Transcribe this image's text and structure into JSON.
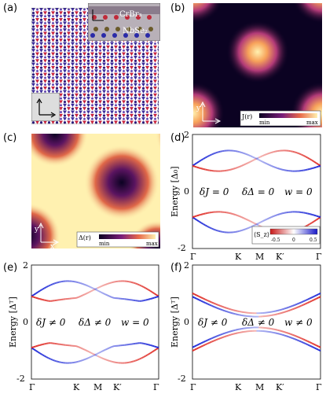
{
  "panels": {
    "a": {
      "label": "(a)",
      "inset_top": "CrBr₃",
      "inset_bottom": "NbSe₂"
    },
    "b": {
      "label": "(b)",
      "colorbar": {
        "title": "J(r)",
        "min": "min",
        "max": "max"
      },
      "axis_y": "y",
      "axis_x": "x"
    },
    "c": {
      "label": "(c)",
      "colorbar": {
        "title": "Δ(r)",
        "min": "min",
        "max": "max"
      },
      "axis_y": "y",
      "axis_x": "x"
    },
    "d": {
      "label": "(d)",
      "ylabel": "Energy [Δ₀]",
      "annotations": [
        "δJ = 0",
        "δΔ = 0",
        "w = 0"
      ],
      "colorbar": {
        "title": "⟨S_z⟩",
        "ticks": [
          "-0.5",
          "0",
          "0.5"
        ]
      }
    },
    "e": {
      "label": "(e)",
      "ylabel": "Energy [Δᵀ]",
      "annotations": [
        "δJ ≠ 0",
        "δΔ ≠ 0",
        "w = 0"
      ]
    },
    "f": {
      "label": "(f)",
      "ylabel": "Energy [Δᵀ]",
      "annotations": [
        "δJ ≠ 0",
        "δΔ ≠ 0",
        "w ≠ 0"
      ]
    }
  },
  "band_axes": {
    "x_ticks": [
      "Γ",
      "K",
      "M",
      "K′",
      "Γ"
    ],
    "y_ticks": [
      "2",
      "0",
      "-2"
    ],
    "ylim": [
      -2,
      2
    ]
  },
  "colors": {
    "red": "#e0302a",
    "blue": "#1f2bd8",
    "dark": "#0b0222",
    "bright": "#fff1b0"
  }
}
